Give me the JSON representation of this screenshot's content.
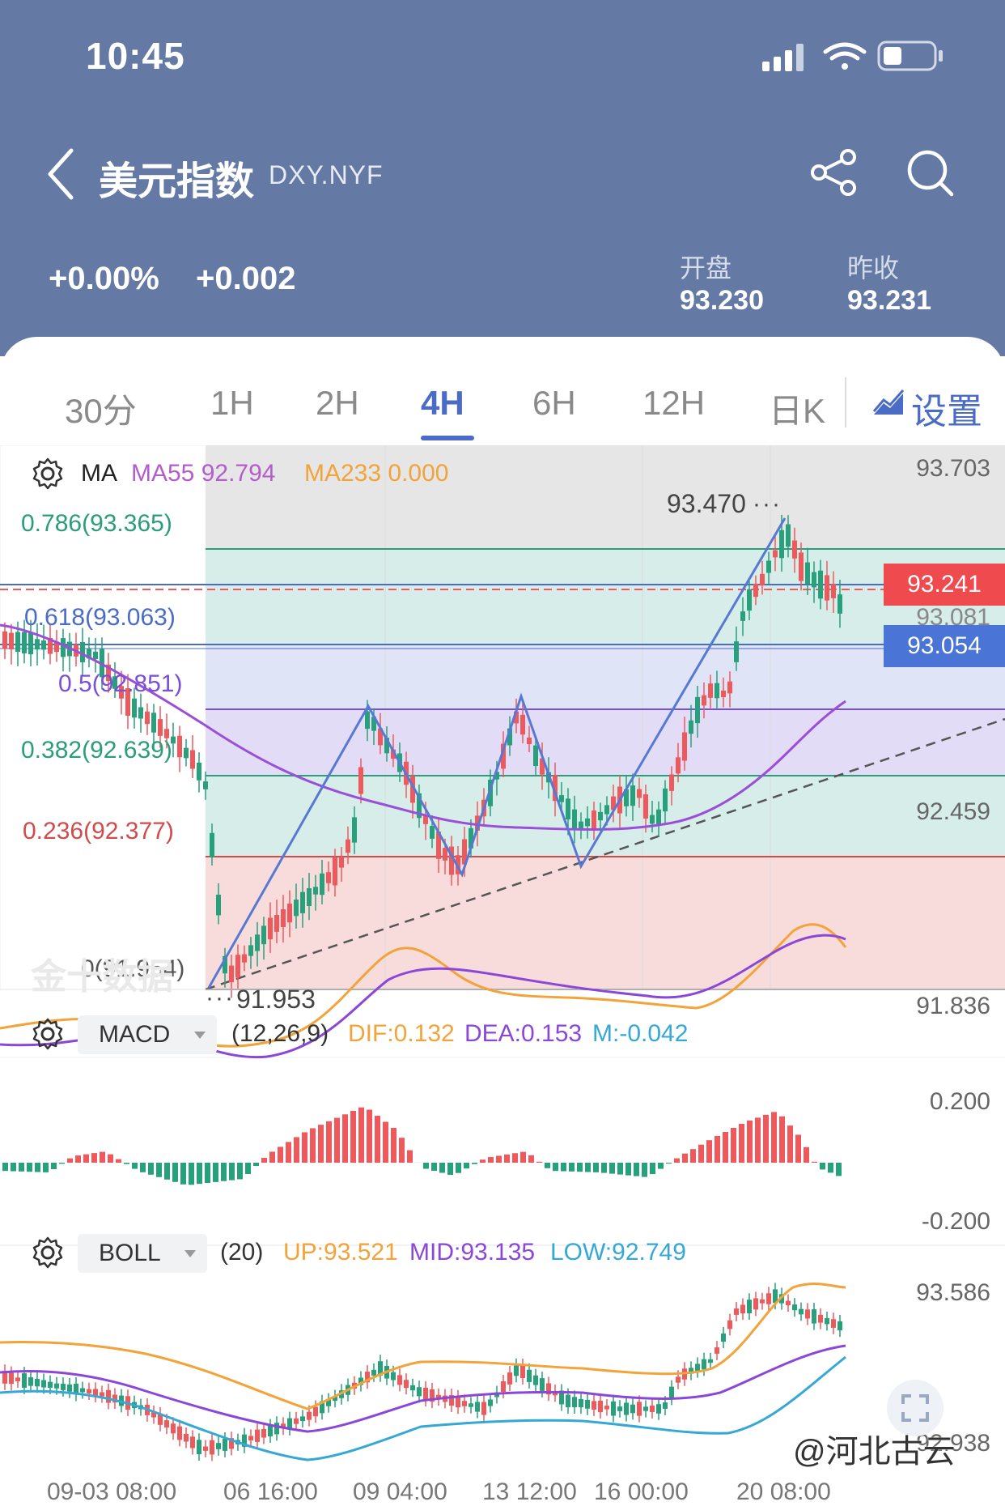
{
  "status_bar": {
    "time": "10:45"
  },
  "nav": {
    "title": "美元指数",
    "code": "DXY.NYF"
  },
  "quote": {
    "change_pct": "+0.00%",
    "change_abs": "+0.002",
    "open_label": "开盘",
    "open_value": "93.230",
    "prev_close_label": "昨收",
    "prev_close_value": "93.231"
  },
  "tabs": [
    {
      "label": "30分",
      "active": false
    },
    {
      "label": "1H",
      "active": false
    },
    {
      "label": "2H",
      "active": false
    },
    {
      "label": "4H",
      "active": true
    },
    {
      "label": "6H",
      "active": false
    },
    {
      "label": "12H",
      "active": false
    },
    {
      "label": "日K",
      "active": false
    }
  ],
  "settings_label": "设置",
  "main_chart": {
    "indicator_name": "MA",
    "ma55": "MA55 92.794",
    "ma233": "MA233 0.000",
    "fib_labels": {
      "f786": "0.786(93.365)",
      "f618": "0.618(93.063)",
      "f500": "0.5(92.851)",
      "f382": "0.382(92.639)",
      "f236": "0.236(92.377)",
      "f000": "0(91.954)"
    },
    "axis_top": "93.703",
    "axis_mid": "92.459",
    "axis_bottom": "91.836",
    "high_marker": "93.470",
    "low_marker": "91.953",
    "price_current": "93.241",
    "price_ref": "93.054",
    "price_hidden": "93.081",
    "watermark": "金十数据",
    "colors": {
      "up": "#f0595c",
      "down": "#26a17b",
      "ma55": "#9b4fd8",
      "fib_blue": "#4a6cc6"
    }
  },
  "macd": {
    "name": "MACD",
    "params": "(12,26,9)",
    "dif": "DIF:0.132",
    "dea": "DEA:0.153",
    "m": "M:-0.042",
    "axis_top": "0.200",
    "axis_bottom": "-0.200"
  },
  "boll": {
    "name": "BOLL",
    "params": "(20)",
    "up": "UP:93.521",
    "mid": "MID:93.135",
    "low": "LOW:92.749",
    "axis_top": "93.586",
    "axis_bottom": "92.938"
  },
  "x_axis": [
    "09-03 08:00",
    "06 16:00",
    "09 04:00",
    "13 12:00",
    "16 00:00",
    "20 08:00"
  ],
  "brand_watermark": "@河北古云"
}
